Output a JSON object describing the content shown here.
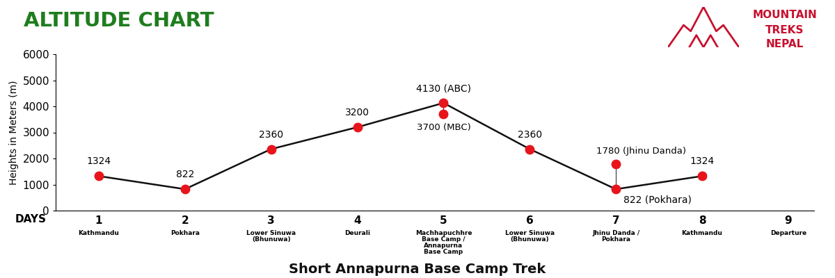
{
  "chart_data": {
    "type": "line",
    "title": "ALTITUDE CHART",
    "subtitle": "Short Annapurna Base Camp Trek",
    "logo": [
      "MOUNTAIN",
      "TREKS",
      "NEPAL"
    ],
    "ylabel": "Heights in Meters (m)",
    "xlabel": "DAYS",
    "x": [
      1,
      2,
      3,
      4,
      5,
      6,
      7,
      8,
      9
    ],
    "places": [
      "Kathmandu",
      "Pokhara",
      "Lower Sinuwa\n(Bhunuwa)",
      "Deurali",
      "Machhapuchhre\nBase Camp /\nAnnapurna\nBase Camp",
      "Lower Sinuwa\n(Bhunuwa)",
      "Jhinu Danda /\nPokhara",
      "Kathmandu",
      "Departure"
    ],
    "values": [
      1324,
      822,
      2360,
      3200,
      4130,
      2360,
      822,
      1324,
      null
    ],
    "value_labels": [
      "1324",
      "822",
      "2360",
      "3200",
      "4130 (ABC)",
      "2360",
      "822 (Pokhara)",
      "1324",
      null
    ],
    "extra_points": {
      "x": [
        5,
        7
      ],
      "values": [
        3700,
        1780
      ],
      "value_labels": [
        "3700 (MBC)",
        "1780 (Jhinu Danda)"
      ]
    },
    "color": "#e8141c",
    "marker": "o",
    "data_labels": true,
    "grid": false,
    "xlim": [
      0.5,
      9.3
    ],
    "ylim": [
      0,
      6000
    ],
    "xticks": [
      1,
      2,
      3,
      4,
      5,
      6,
      7,
      8,
      9
    ],
    "yticks": [
      0,
      1000,
      2000,
      3000,
      4000,
      5000,
      6000
    ]
  }
}
